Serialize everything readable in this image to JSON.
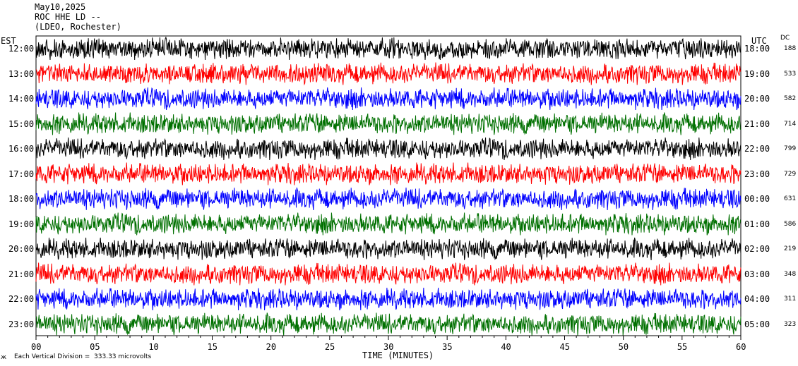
{
  "header": {
    "date": "May10,2025",
    "station": "ROC HHE LD --",
    "network": "(LDEO, Rochester)"
  },
  "left_axis_label": "EST",
  "right_axis_label": "UTC",
  "dc_label": "DC",
  "footer_note": "Each Vertical Division =  333.33 microvolts",
  "chart_data": {
    "type": "line",
    "title": "May10,2025",
    "xlabel": "TIME (MINUTES)",
    "xlim": [
      0,
      60
    ],
    "x_ticks": [
      "00",
      "05",
      "10",
      "15",
      "20",
      "25",
      "30",
      "35",
      "40",
      "45",
      "50",
      "55",
      "60"
    ],
    "trace_colors": [
      "#000000",
      "#ff0000",
      "#0000ff",
      "#007000"
    ],
    "rows": [
      {
        "est": "12:00",
        "utc": "18:00",
        "dc": "188"
      },
      {
        "est": "13:00",
        "utc": "19:00",
        "dc": "533"
      },
      {
        "est": "14:00",
        "utc": "20:00",
        "dc": "582"
      },
      {
        "est": "15:00",
        "utc": "21:00",
        "dc": "714"
      },
      {
        "est": "16:00",
        "utc": "22:00",
        "dc": "799"
      },
      {
        "est": "17:00",
        "utc": "23:00",
        "dc": "729"
      },
      {
        "est": "18:00",
        "utc": "00:00",
        "dc": "631"
      },
      {
        "est": "19:00",
        "utc": "01:00",
        "dc": "586"
      },
      {
        "est": "20:00",
        "utc": "02:00",
        "dc": "219"
      },
      {
        "est": "21:00",
        "utc": "03:00",
        "dc": "348"
      },
      {
        "est": "22:00",
        "utc": "04:00",
        "dc": "311"
      },
      {
        "est": "23:00",
        "utc": "05:00",
        "dc": "323"
      }
    ]
  }
}
